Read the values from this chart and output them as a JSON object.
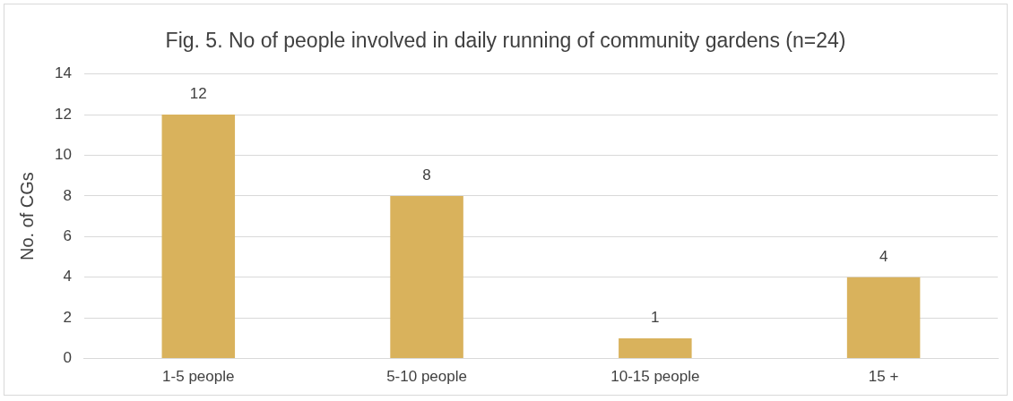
{
  "chart_data": {
    "type": "bar",
    "title": "Fig. 5. No of people involved in daily running of community gardens (n=24)",
    "ylabel": "No. of CGs",
    "categories": [
      "1-5 people",
      "5-10 people",
      "10-15 people",
      "15 +"
    ],
    "values": [
      12,
      8,
      1,
      4
    ],
    "color": "#d9b25c",
    "ylim": [
      0,
      14
    ],
    "yticks": [
      0,
      2,
      4,
      6,
      8,
      10,
      12,
      14
    ],
    "grid": "y",
    "data_labels": true
  }
}
